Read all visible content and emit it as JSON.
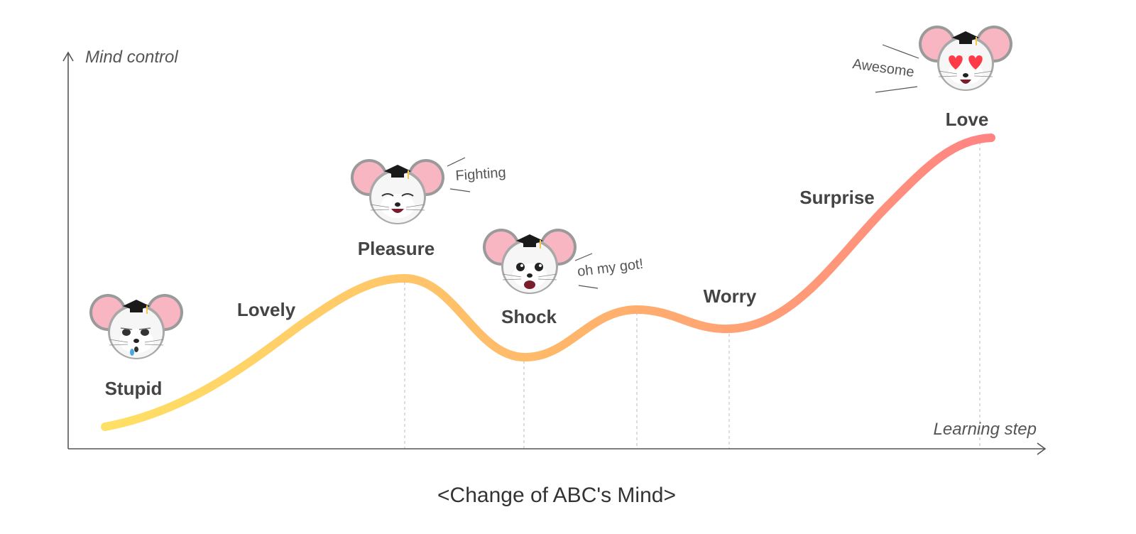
{
  "axes": {
    "y_label": "Mind control",
    "x_label": "Learning step"
  },
  "caption": "<Change of ABC's Mind>",
  "curve": {
    "gradient_start": "#ffe066",
    "gradient_mid": "#ffb86a",
    "gradient_end": "#ff8383"
  },
  "stages": [
    {
      "label": "Stupid",
      "face": "crying-mouse-icon"
    },
    {
      "label": "Lovely"
    },
    {
      "label": "Pleasure",
      "face": "laughing-mouse-icon"
    },
    {
      "label": "Shock",
      "face": "shocked-mouse-icon"
    },
    {
      "label": "Worry"
    },
    {
      "label": "Surprise"
    },
    {
      "label": "Love",
      "face": "heart-eyes-mouse-icon"
    }
  ],
  "speech": {
    "fighting": "Fighting",
    "shock": "oh my got!",
    "awesome": "Awesome"
  },
  "colors": {
    "ear_pink": "#f7b6c2",
    "cap": "#1a1a1a",
    "tassel": "#f2c94c",
    "heart": "#ff3b47"
  }
}
